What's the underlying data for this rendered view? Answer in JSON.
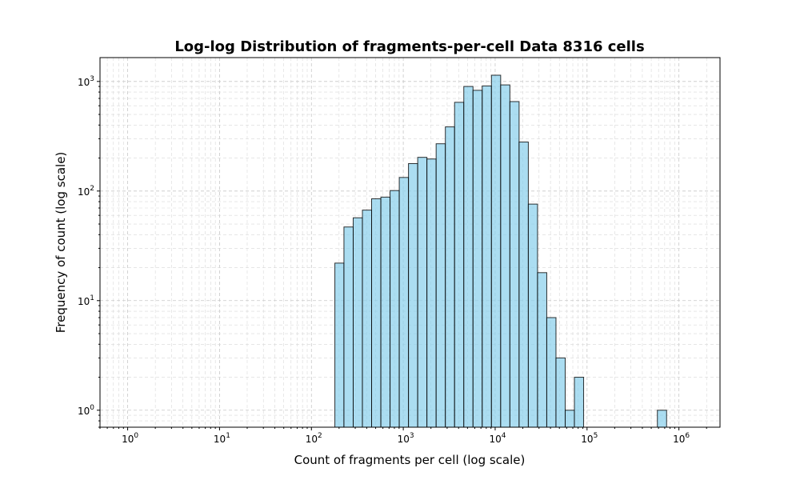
{
  "chart_data": {
    "type": "bar",
    "title": "Log-log Distribution of fragments-per-cell Data 8316 cells",
    "xlabel": "Count of fragments per cell (log scale)",
    "ylabel": "Frequency of count (log scale)",
    "xscale": "log",
    "yscale": "log",
    "xlim": [
      0.5,
      2800000
    ],
    "ylim": [
      0.7,
      1650
    ],
    "grid": true,
    "grid_which": "both",
    "bar_color": "#87CEEB",
    "edge_color": "#000000",
    "x_ticks": [
      {
        "base": "10",
        "exp": "0",
        "value": 1
      },
      {
        "base": "10",
        "exp": "1",
        "value": 10
      },
      {
        "base": "10",
        "exp": "2",
        "value": 100
      },
      {
        "base": "10",
        "exp": "3",
        "value": 1000
      },
      {
        "base": "10",
        "exp": "4",
        "value": 10000
      },
      {
        "base": "10",
        "exp": "5",
        "value": 100000
      },
      {
        "base": "10",
        "exp": "6",
        "value": 1000000
      }
    ],
    "y_ticks": [
      {
        "base": "10",
        "exp": "0",
        "value": 1
      },
      {
        "base": "10",
        "exp": "1",
        "value": 10
      },
      {
        "base": "10",
        "exp": "2",
        "value": 100
      },
      {
        "base": "10",
        "exp": "3",
        "value": 1000
      }
    ],
    "bin_edges": [
      180,
      226,
      285,
      359,
      452,
      570,
      718,
      904,
      1139,
      1435,
      1808,
      2278,
      2870,
      3616,
      4556,
      5740,
      7231,
      9111,
      11479,
      14462,
      18220,
      22956,
      28922,
      36438,
      45908,
      57839,
      72871,
      91809,
      115669,
      145730,
      183603,
      231320,
      291437,
      367178,
      462603,
      582827,
      734295,
      925126,
      1165553
    ],
    "counts": [
      22,
      47,
      57,
      67,
      85,
      88,
      101,
      133,
      178,
      203,
      196,
      270,
      385,
      645,
      900,
      830,
      910,
      1140,
      930,
      655,
      280,
      76,
      18,
      7,
      3,
      1,
      2,
      0,
      0,
      0,
      0,
      0,
      0,
      0,
      0,
      1,
      0,
      0
    ]
  }
}
